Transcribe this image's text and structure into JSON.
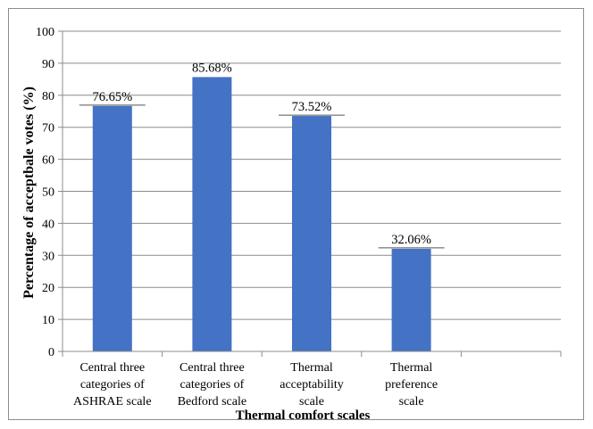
{
  "chart_data": {
    "type": "bar",
    "categories": [
      [
        "Central three",
        "categories of",
        "ASHRAE scale"
      ],
      [
        "Central three",
        "categories of",
        "Bedford scale"
      ],
      [
        "Thermal",
        "acceptability",
        "scale"
      ],
      [
        "Thermal",
        "preference",
        "scale"
      ],
      [
        ""
      ]
    ],
    "values": [
      76.65,
      85.68,
      73.52,
      32.06,
      null
    ],
    "data_labels": [
      "76.65%",
      "85.68%",
      "73.52%",
      "32.06%",
      ""
    ],
    "xlabel": "Thermal comfort scales",
    "ylabel": "Percentage of acceptbale votes  (%)",
    "ylim": [
      0,
      100
    ],
    "yticks": [
      0,
      10,
      20,
      30,
      40,
      50,
      60,
      70,
      80,
      90,
      100
    ],
    "grid": true,
    "bar_color": "#4472c4",
    "gridline_color": "#8c8c8c"
  }
}
